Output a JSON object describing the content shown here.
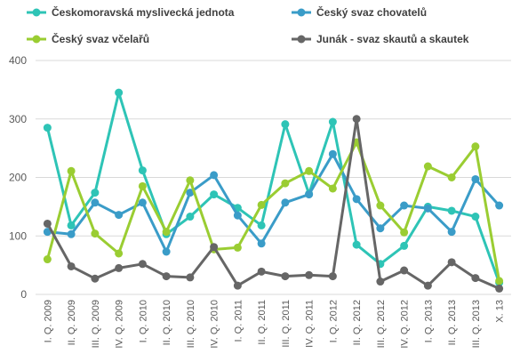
{
  "chart_data": {
    "type": "line",
    "categories": [
      "I. Q. 2009",
      "II. Q. 2009",
      "III. Q. 2009",
      "IV. Q. 2009",
      "I. Q. 2010",
      "II. Q. 2010",
      "III. Q. 2010",
      "IV. Q. 2010",
      "I. Q. 2011",
      "II. Q. 2011",
      "III. Q. 2011",
      "IV. Q. 2011",
      "I. Q. 2012",
      "II. Q. 2012",
      "III. Q. 2012",
      "IV. Q. 2012",
      "I. Q. 2013",
      "II. Q. 2013",
      "III. Q. 2013",
      "X. 13"
    ],
    "ylim": [
      0,
      400
    ],
    "yticks": [
      0,
      100,
      200,
      300,
      400
    ],
    "grid": true,
    "legend_position": "top",
    "series": [
      {
        "name": "Českomoravská myslivecká jednota",
        "color": "#2EC4B6",
        "values": [
          285,
          118,
          174,
          345,
          212,
          103,
          133,
          171,
          148,
          118,
          291,
          172,
          295,
          85,
          52,
          83,
          150,
          143,
          133,
          20
        ]
      },
      {
        "name": "Český svaz chovatelů",
        "color": "#3A9CC8",
        "values": [
          107,
          103,
          157,
          136,
          157,
          73,
          174,
          204,
          135,
          87,
          157,
          171,
          240,
          163,
          113,
          152,
          147,
          107,
          197,
          152
        ]
      },
      {
        "name": "Český svaz včelařů",
        "color": "#9ACD32",
        "values": [
          60,
          211,
          104,
          70,
          185,
          107,
          195,
          77,
          80,
          153,
          190,
          211,
          181,
          260,
          152,
          106,
          219,
          200,
          253,
          23
        ]
      },
      {
        "name": "Junák - svaz skautů a skautek",
        "color": "#666666",
        "values": [
          121,
          48,
          27,
          45,
          52,
          31,
          29,
          81,
          15,
          39,
          31,
          33,
          31,
          300,
          22,
          41,
          15,
          55,
          28,
          10
        ]
      }
    ]
  }
}
